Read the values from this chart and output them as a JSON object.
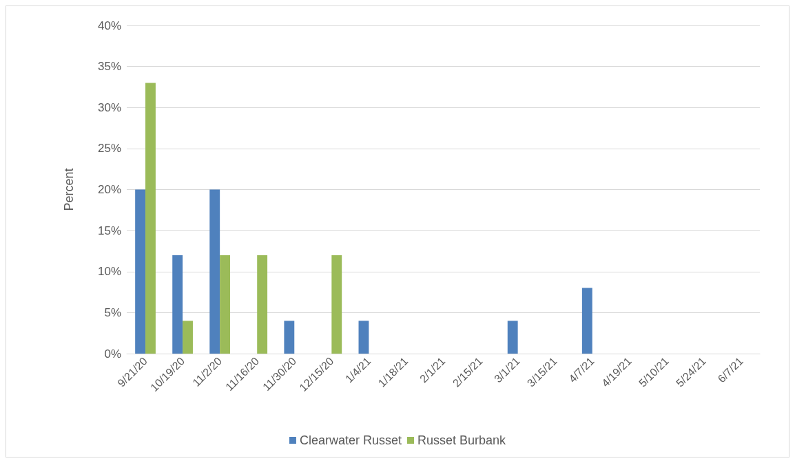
{
  "chart_data": {
    "type": "bar",
    "ylabel": "Percent",
    "categories": [
      "9/21/20",
      "10/19/20",
      "11/2/20",
      "11/16/20",
      "11/30/20",
      "12/15/20",
      "1/4/21",
      "1/18/21",
      "2/1/21",
      "2/15/21",
      "3/1/21",
      "3/15/21",
      "4/7/21",
      "4/19/21",
      "5/10/21",
      "5/24/21",
      "6/7/21"
    ],
    "series": [
      {
        "name": "Clearwater Russet",
        "color": "#4f81bd",
        "values": [
          20,
          12,
          20,
          0,
          4,
          0,
          4,
          0,
          0,
          0,
          4,
          0,
          8,
          0,
          0,
          0,
          0
        ]
      },
      {
        "name": "Russet Burbank",
        "color": "#9bbb59",
        "values": [
          33,
          4,
          12,
          12,
          0,
          12,
          0,
          0,
          0,
          0,
          0,
          0,
          0,
          0,
          0,
          0,
          0
        ]
      }
    ],
    "ylim": [
      0,
      40
    ],
    "yticks": [
      {
        "value": 0,
        "label": "0%"
      },
      {
        "value": 5,
        "label": "5%"
      },
      {
        "value": 10,
        "label": "10%"
      },
      {
        "value": 15,
        "label": "15%"
      },
      {
        "value": 20,
        "label": "20%"
      },
      {
        "value": 25,
        "label": "25%"
      },
      {
        "value": 30,
        "label": "30%"
      },
      {
        "value": 35,
        "label": "35%"
      },
      {
        "value": 40,
        "label": "40%"
      }
    ],
    "grid": "y",
    "legend": "bottom"
  }
}
